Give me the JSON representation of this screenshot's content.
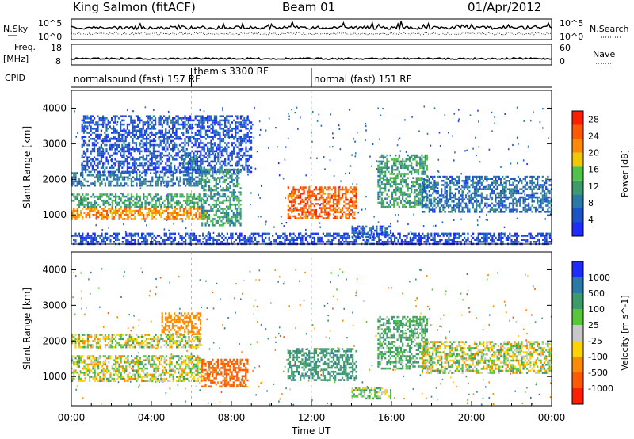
{
  "header": {
    "station": "King Salmon (fitACF)",
    "beam": "Beam 01",
    "date": "01/Apr/2012"
  },
  "panels": {
    "nsky_label": "N.Sky",
    "nsky_ticks": [
      "10^5",
      "10^0"
    ],
    "nsearch_label": "N.Search",
    "freq_label": "Freq.",
    "freq_unit": "[MHz]",
    "freq_ticks": [
      "18",
      "8"
    ],
    "nave_label": "Nave",
    "nave_ticks": [
      "60",
      "0"
    ],
    "cpid_label": "CPID",
    "cpid_modes": [
      {
        "text": "normalsound (fast) 157 RF",
        "start": "00:00"
      },
      {
        "text": "themis 3300 RF",
        "start": "06:00"
      },
      {
        "text": "normal (fast) 151 RF",
        "start": "12:00"
      }
    ]
  },
  "chart_data": [
    {
      "type": "heatmap",
      "title": "",
      "xlabel": "",
      "ylabel": "Slant Range [km]",
      "x_range": [
        "00:00",
        "24:00"
      ],
      "ylim": [
        180,
        4500
      ],
      "yticks": [
        1000,
        2000,
        3000,
        4000
      ],
      "colorbar": {
        "label": "Power [dB]",
        "ticks": [
          4,
          8,
          12,
          16,
          20,
          24,
          28
        ],
        "range": [
          0,
          30
        ],
        "colors": [
          "#1e2cff",
          "#1b53c9",
          "#2a7aa8",
          "#3d9a6b",
          "#4fc24a",
          "#f3c700",
          "#ff8a00",
          "#ff5a00",
          "#ff2000"
        ]
      },
      "regions": [
        {
          "name": "",
          "t0": 0.0,
          "t1": 6.8,
          "r0": 900,
          "r1": 1200,
          "value": 22
        },
        {
          "name": "",
          "t0": 0.0,
          "t1": 6.5,
          "r0": 1200,
          "r1": 1600,
          "value": 12
        },
        {
          "name": "",
          "t0": 0.0,
          "t1": 6.5,
          "r0": 1800,
          "r1": 2200,
          "value": 8
        },
        {
          "name": "",
          "t0": 5.5,
          "t1": 6.5,
          "r0": 2200,
          "r1": 2700,
          "value": 12
        },
        {
          "name": "",
          "t0": 0.5,
          "t1": 9.0,
          "r0": 2200,
          "r1": 3800,
          "value": 5
        },
        {
          "name": "",
          "t0": 6.5,
          "t1": 8.5,
          "r0": 700,
          "r1": 2300,
          "value": 11
        },
        {
          "name": "",
          "t0": 10.8,
          "t1": 14.2,
          "r0": 900,
          "r1": 1800,
          "value": 25
        },
        {
          "name": "",
          "t0": 15.3,
          "t1": 17.8,
          "r0": 1200,
          "r1": 2700,
          "value": 12
        },
        {
          "name": "",
          "t0": 17.5,
          "t1": 24.0,
          "r0": 1100,
          "r1": 2100,
          "value": 7
        },
        {
          "name": "",
          "t0": 14.0,
          "t1": 16.0,
          "r0": 400,
          "r1": 700,
          "value": 6
        },
        {
          "name": "",
          "t0": 0.0,
          "t1": 24.0,
          "r0": 180,
          "r1": 500,
          "value": 4
        }
      ]
    },
    {
      "type": "heatmap",
      "title": "",
      "xlabel": "Time UT",
      "ylabel": "Slant Range [km]",
      "x_range": [
        "00:00",
        "24:00"
      ],
      "xticks": [
        "00:00",
        "04:00",
        "08:00",
        "12:00",
        "16:00",
        "20:00",
        "00:00"
      ],
      "ylim": [
        180,
        4500
      ],
      "yticks": [
        1000,
        2000,
        3000,
        4000
      ],
      "colorbar": {
        "label": "Velocity [m s^-1]",
        "ticks": [
          "1000",
          "500",
          "100",
          "25",
          "-25",
          "-100",
          "-500",
          "-1000"
        ],
        "colors": [
          "#1e2cff",
          "#2a7aa8",
          "#3d9a6b",
          "#57c73a",
          "#c8c8c8",
          "#ffd200",
          "#ff8a00",
          "#ff5a00",
          "#ff2000"
        ]
      },
      "regions": [
        {
          "name": "",
          "t0": 0.0,
          "t1": 6.5,
          "r0": 900,
          "r1": 1600,
          "value": 0
        },
        {
          "name": "",
          "t0": 0.0,
          "t1": 6.5,
          "r0": 1800,
          "r1": 2200,
          "value": 0
        },
        {
          "name": "",
          "t0": 4.5,
          "t1": 6.5,
          "r0": 2200,
          "r1": 2800,
          "value": -300
        },
        {
          "name": "",
          "t0": 6.5,
          "t1": 8.8,
          "r0": 700,
          "r1": 1500,
          "value": -600
        },
        {
          "name": "",
          "t0": 10.8,
          "t1": 14.2,
          "r0": 900,
          "r1": 1800,
          "value": 400
        },
        {
          "name": "",
          "t0": 15.3,
          "t1": 17.8,
          "r0": 1200,
          "r1": 2700,
          "value": 150
        },
        {
          "name": "",
          "t0": 17.5,
          "t1": 24.0,
          "r0": 1100,
          "r1": 2000,
          "value": 0
        },
        {
          "name": "",
          "t0": 14.0,
          "t1": 16.0,
          "r0": 400,
          "r1": 700,
          "value": 60
        }
      ]
    }
  ]
}
